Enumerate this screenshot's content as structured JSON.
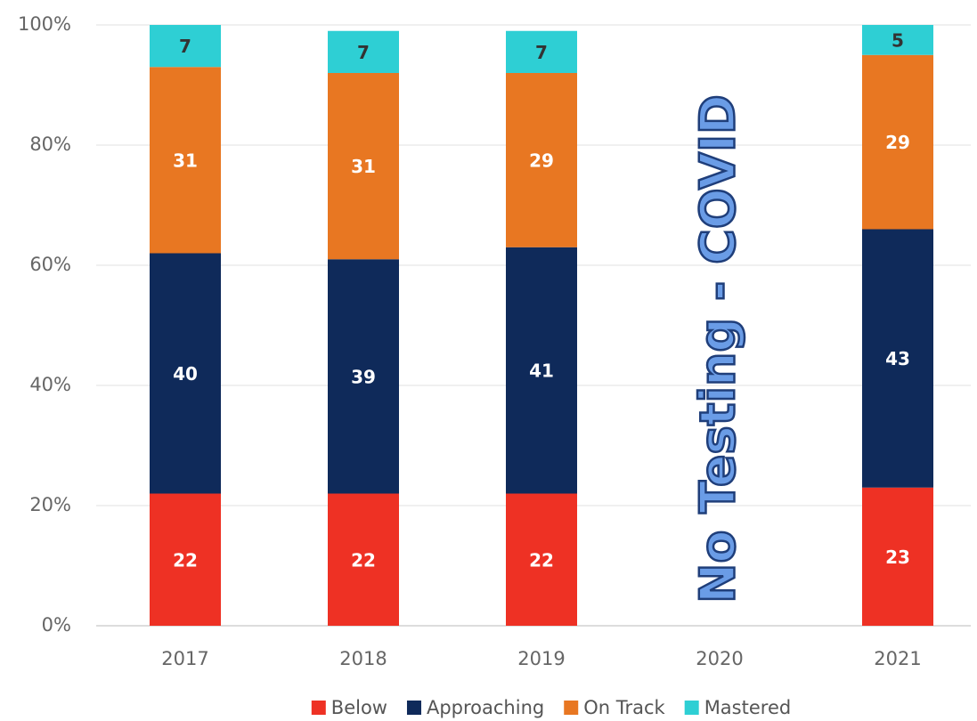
{
  "chart_data": {
    "type": "stacked_bar",
    "categories": [
      "2017",
      "2018",
      "2019",
      "2020",
      "2021"
    ],
    "series": [
      {
        "name": "Below",
        "color": "#ee3124",
        "values": [
          22,
          22,
          22,
          null,
          23
        ]
      },
      {
        "name": "Approaching",
        "color": "#0f2a5a",
        "values": [
          40,
          39,
          41,
          null,
          43
        ]
      },
      {
        "name": "On Track",
        "color": "#e87722",
        "values": [
          31,
          31,
          29,
          null,
          29
        ]
      },
      {
        "name": "Mastered",
        "color": "#2ecfd4",
        "values": [
          7,
          7,
          7,
          null,
          5
        ]
      }
    ],
    "ylim": [
      0,
      100
    ],
    "yticks": [
      {
        "value": 0,
        "label": "0%"
      },
      {
        "value": 20,
        "label": "20%"
      },
      {
        "value": 40,
        "label": "40%"
      },
      {
        "value": 60,
        "label": "60%"
      },
      {
        "value": 80,
        "label": "80%"
      },
      {
        "value": 100,
        "label": "100%"
      }
    ],
    "grid": true,
    "legend": "bottom",
    "annotation": "No Testing - COVID"
  }
}
